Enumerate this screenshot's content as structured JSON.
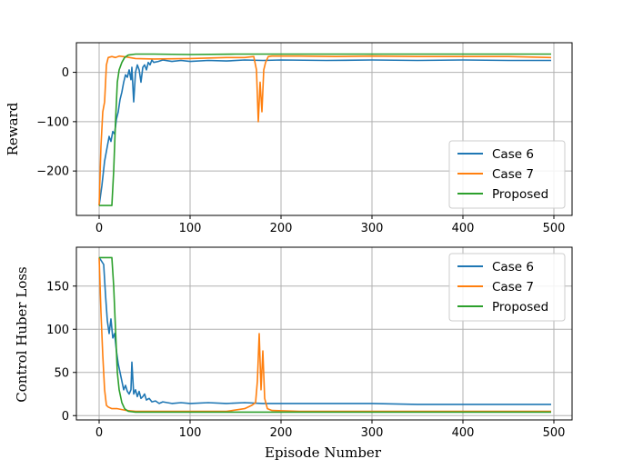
{
  "chart_data": [
    {
      "type": "line",
      "title": "",
      "xlabel": "",
      "ylabel": "Reward",
      "xlim": [
        -25,
        520
      ],
      "ylim": [
        -290,
        60
      ],
      "xticks": [
        0,
        100,
        200,
        300,
        400,
        500
      ],
      "yticks": [
        0,
        -100,
        -200
      ],
      "xtick_labels": [
        "0",
        "100",
        "200",
        "300",
        "400",
        "500"
      ],
      "ytick_labels": [
        "0",
        "−100",
        "−200"
      ],
      "grid": true,
      "legend_position": "lower-right",
      "series": [
        {
          "name": "Case 6",
          "color": "#1f77b4",
          "points": [
            [
              0,
              -270
            ],
            [
              3,
              -230
            ],
            [
              6,
              -180
            ],
            [
              9,
              -150
            ],
            [
              11,
              -130
            ],
            [
              13,
              -140
            ],
            [
              15,
              -120
            ],
            [
              17,
              -125
            ],
            [
              19,
              -95
            ],
            [
              21,
              -80
            ],
            [
              23,
              -55
            ],
            [
              25,
              -40
            ],
            [
              27,
              -20
            ],
            [
              29,
              -5
            ],
            [
              31,
              -10
            ],
            [
              33,
              5
            ],
            [
              35,
              -15
            ],
            [
              36,
              10
            ],
            [
              38,
              -60
            ],
            [
              40,
              0
            ],
            [
              42,
              15
            ],
            [
              44,
              5
            ],
            [
              46,
              -20
            ],
            [
              48,
              10
            ],
            [
              50,
              15
            ],
            [
              52,
              5
            ],
            [
              54,
              20
            ],
            [
              56,
              15
            ],
            [
              58,
              25
            ],
            [
              60,
              20
            ],
            [
              65,
              22
            ],
            [
              70,
              25
            ],
            [
              80,
              22
            ],
            [
              90,
              24
            ],
            [
              100,
              22
            ],
            [
              120,
              24
            ],
            [
              140,
              23
            ],
            [
              160,
              25
            ],
            [
              180,
              24
            ],
            [
              200,
              25
            ],
            [
              250,
              24
            ],
            [
              300,
              25
            ],
            [
              350,
              24
            ],
            [
              400,
              25
            ],
            [
              450,
              24
            ],
            [
              497,
              24
            ]
          ]
        },
        {
          "name": "Case 7",
          "color": "#ff7f0e",
          "points": [
            [
              0,
              -270
            ],
            [
              2,
              -150
            ],
            [
              4,
              -80
            ],
            [
              6,
              -60
            ],
            [
              8,
              15
            ],
            [
              10,
              30
            ],
            [
              14,
              32
            ],
            [
              18,
              30
            ],
            [
              22,
              33
            ],
            [
              30,
              31
            ],
            [
              40,
              28
            ],
            [
              60,
              27
            ],
            [
              100,
              28
            ],
            [
              140,
              30
            ],
            [
              160,
              30
            ],
            [
              170,
              32
            ],
            [
              173,
              5
            ],
            [
              175,
              -100
            ],
            [
              177,
              -20
            ],
            [
              179,
              -80
            ],
            [
              181,
              5
            ],
            [
              183,
              20
            ],
            [
              186,
              32
            ],
            [
              190,
              33
            ],
            [
              220,
              33
            ],
            [
              260,
              32
            ],
            [
              300,
              33
            ],
            [
              350,
              32
            ],
            [
              400,
              32
            ],
            [
              450,
              32
            ],
            [
              497,
              30
            ]
          ]
        },
        {
          "name": "Proposed",
          "color": "#2ca02c",
          "points": [
            [
              0,
              -270
            ],
            [
              14,
              -270
            ],
            [
              16,
              -200
            ],
            [
              18,
              -100
            ],
            [
              20,
              -20
            ],
            [
              22,
              5
            ],
            [
              25,
              20
            ],
            [
              28,
              30
            ],
            [
              32,
              35
            ],
            [
              40,
              37
            ],
            [
              60,
              37
            ],
            [
              100,
              36
            ],
            [
              150,
              37
            ],
            [
              200,
              37
            ],
            [
              250,
              37
            ],
            [
              300,
              37
            ],
            [
              350,
              37
            ],
            [
              400,
              37
            ],
            [
              450,
              37
            ],
            [
              497,
              37
            ]
          ]
        }
      ]
    },
    {
      "type": "line",
      "title": "",
      "xlabel": "Episode Number",
      "ylabel": "Control Huber Loss",
      "xlim": [
        -25,
        520
      ],
      "ylim": [
        -5,
        195
      ],
      "xticks": [
        0,
        100,
        200,
        300,
        400,
        500
      ],
      "yticks": [
        0,
        50,
        100,
        150
      ],
      "xtick_labels": [
        "0",
        "100",
        "200",
        "300",
        "400",
        "500"
      ],
      "ytick_labels": [
        "0",
        "50",
        "100",
        "150"
      ],
      "grid": true,
      "legend_position": "upper-right",
      "series": [
        {
          "name": "Case 6",
          "color": "#1f77b4",
          "points": [
            [
              0,
              183
            ],
            [
              2,
              180
            ],
            [
              5,
              175
            ],
            [
              7,
              140
            ],
            [
              9,
              110
            ],
            [
              11,
              95
            ],
            [
              13,
              112
            ],
            [
              15,
              90
            ],
            [
              17,
              95
            ],
            [
              19,
              75
            ],
            [
              21,
              60
            ],
            [
              23,
              50
            ],
            [
              25,
              40
            ],
            [
              27,
              30
            ],
            [
              29,
              35
            ],
            [
              31,
              28
            ],
            [
              33,
              25
            ],
            [
              35,
              30
            ],
            [
              36,
              62
            ],
            [
              38,
              25
            ],
            [
              40,
              30
            ],
            [
              42,
              22
            ],
            [
              44,
              28
            ],
            [
              46,
              20
            ],
            [
              48,
              22
            ],
            [
              50,
              25
            ],
            [
              52,
              18
            ],
            [
              55,
              20
            ],
            [
              58,
              16
            ],
            [
              62,
              17
            ],
            [
              66,
              14
            ],
            [
              70,
              16
            ],
            [
              80,
              14
            ],
            [
              90,
              15
            ],
            [
              100,
              14
            ],
            [
              120,
              15
            ],
            [
              140,
              14
            ],
            [
              160,
              15
            ],
            [
              180,
              14
            ],
            [
              200,
              14
            ],
            [
              250,
              14
            ],
            [
              300,
              14
            ],
            [
              350,
              13
            ],
            [
              400,
              13
            ],
            [
              450,
              13
            ],
            [
              497,
              13
            ]
          ]
        },
        {
          "name": "Case 7",
          "color": "#ff7f0e",
          "points": [
            [
              0,
              183
            ],
            [
              2,
              120
            ],
            [
              4,
              70
            ],
            [
              6,
              30
            ],
            [
              8,
              12
            ],
            [
              10,
              10
            ],
            [
              14,
              8
            ],
            [
              20,
              8
            ],
            [
              30,
              6
            ],
            [
              40,
              5
            ],
            [
              60,
              5
            ],
            [
              100,
              5
            ],
            [
              140,
              5
            ],
            [
              160,
              8
            ],
            [
              168,
              12
            ],
            [
              172,
              15
            ],
            [
              174,
              40
            ],
            [
              176,
              95
            ],
            [
              178,
              30
            ],
            [
              180,
              75
            ],
            [
              182,
              20
            ],
            [
              185,
              8
            ],
            [
              190,
              6
            ],
            [
              220,
              5
            ],
            [
              260,
              5
            ],
            [
              300,
              5
            ],
            [
              350,
              5
            ],
            [
              400,
              5
            ],
            [
              450,
              5
            ],
            [
              497,
              5
            ]
          ]
        },
        {
          "name": "Proposed",
          "color": "#2ca02c",
          "points": [
            [
              0,
              183
            ],
            [
              14,
              183
            ],
            [
              16,
              150
            ],
            [
              18,
              100
            ],
            [
              20,
              50
            ],
            [
              22,
              30
            ],
            [
              25,
              15
            ],
            [
              28,
              8
            ],
            [
              32,
              5
            ],
            [
              40,
              4
            ],
            [
              60,
              4
            ],
            [
              100,
              4
            ],
            [
              150,
              4
            ],
            [
              200,
              4
            ],
            [
              250,
              4
            ],
            [
              300,
              4
            ],
            [
              350,
              4
            ],
            [
              400,
              4
            ],
            [
              450,
              4
            ],
            [
              497,
              4
            ]
          ]
        }
      ]
    }
  ]
}
